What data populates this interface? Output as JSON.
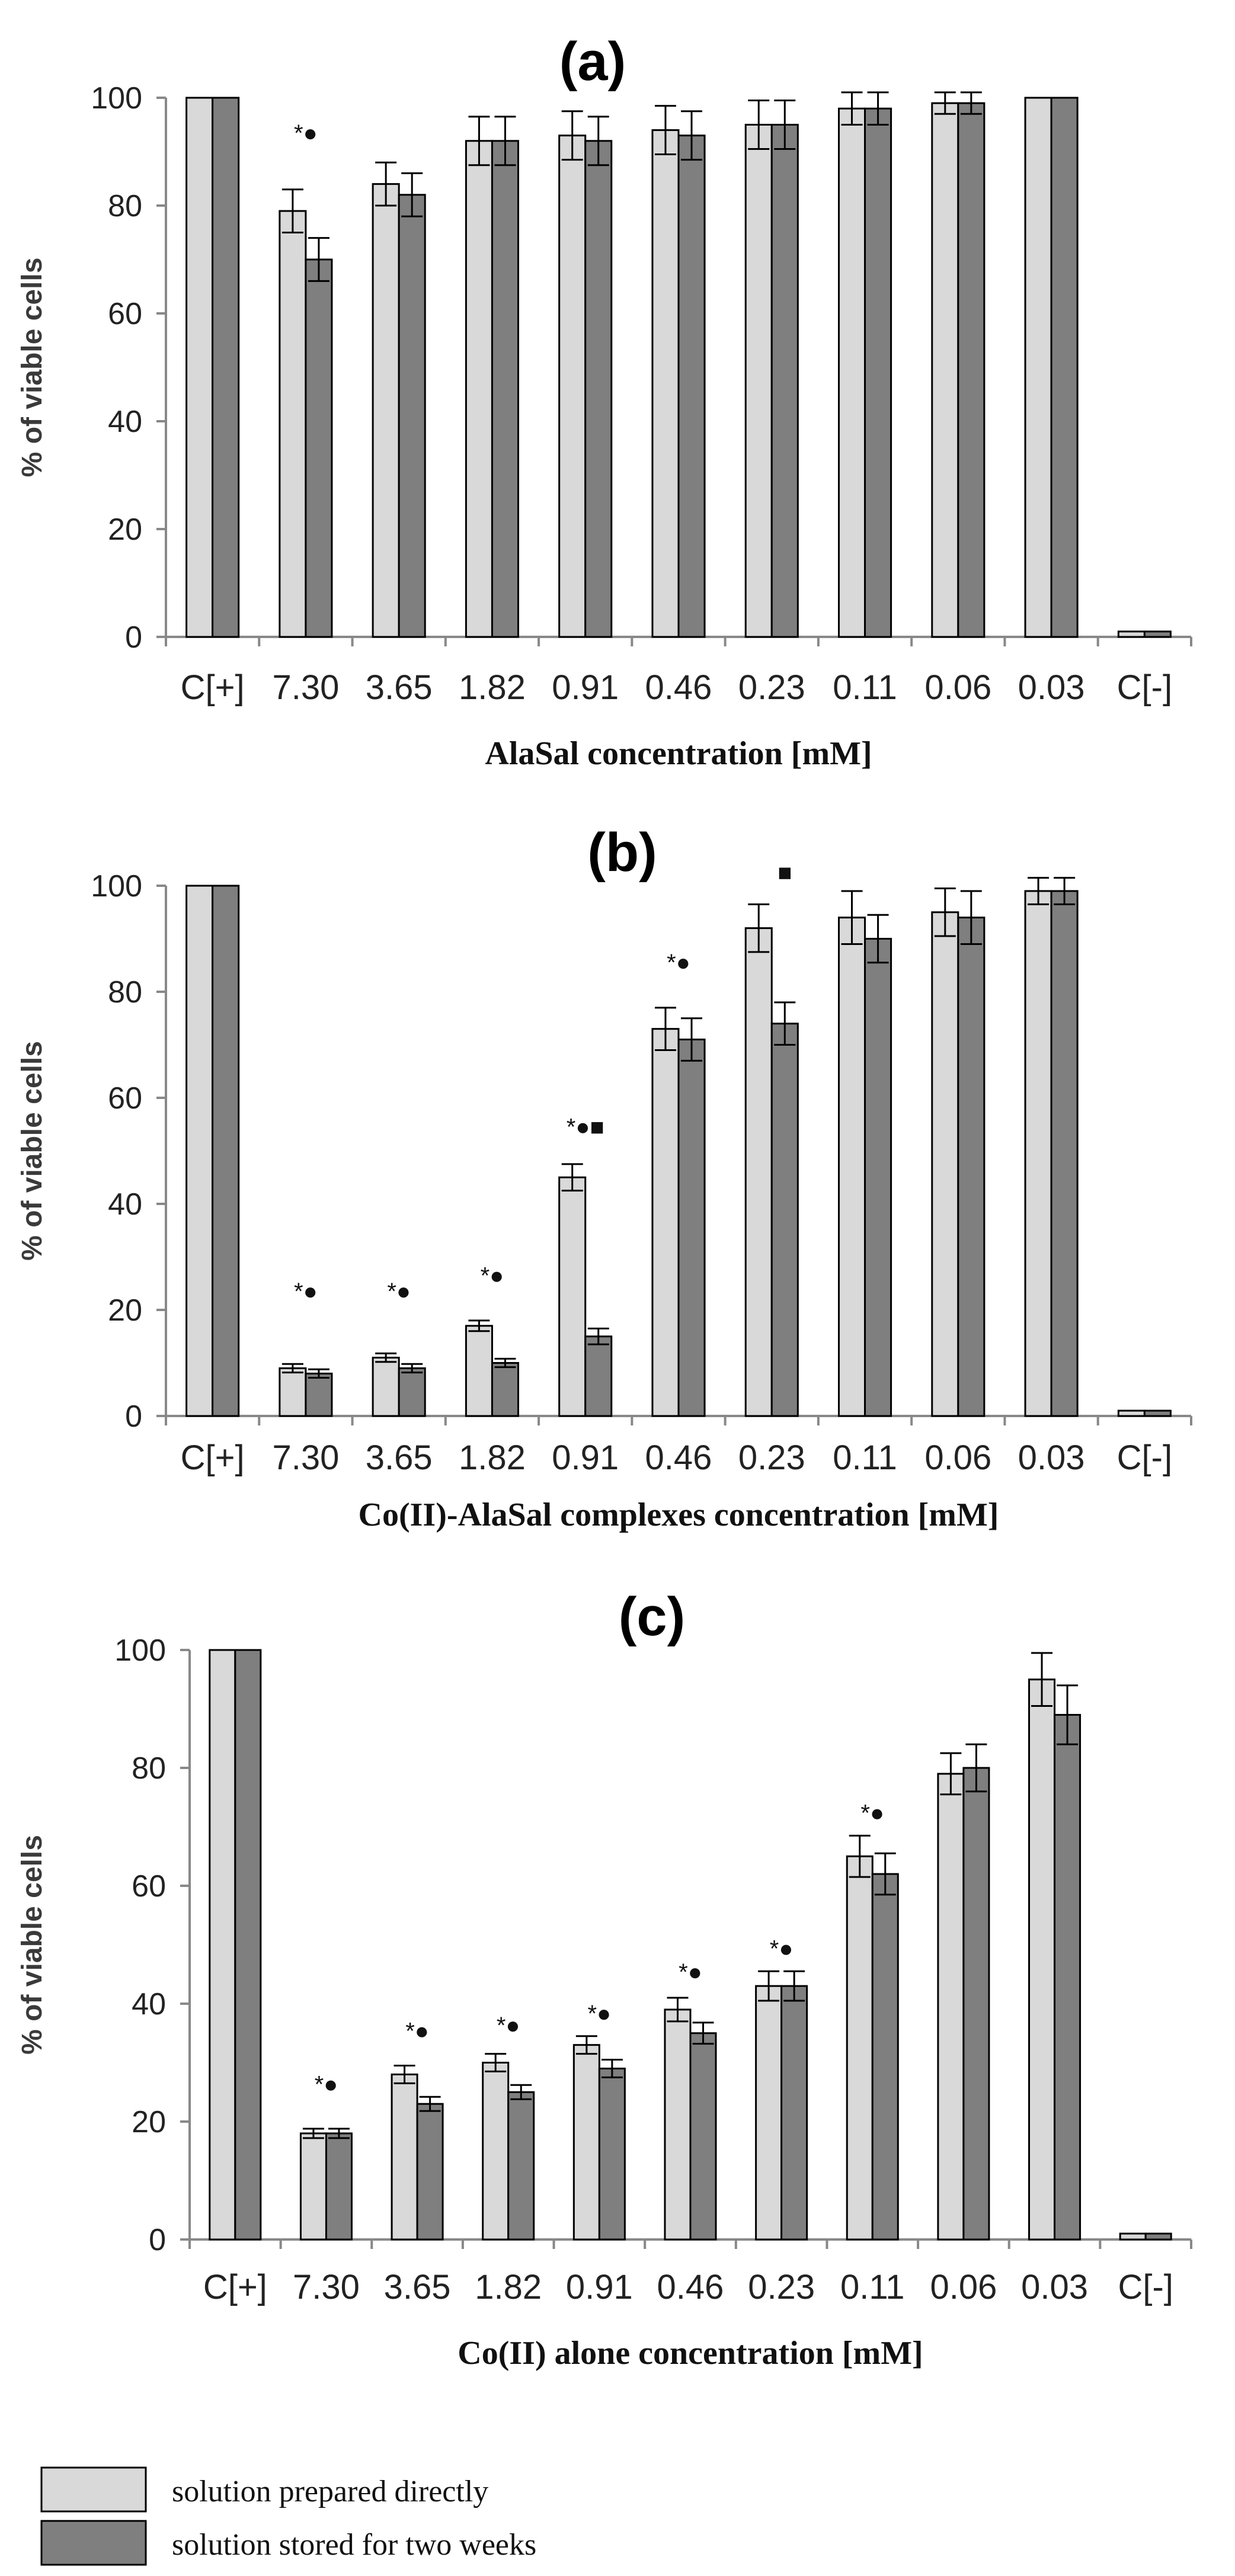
{
  "chart_data": [
    {
      "type": "bar",
      "title": "(a)",
      "xlabel": "AlaSal   concentration  [mM]",
      "ylabel": "% of viable  cells",
      "ylim": [
        0,
        100
      ],
      "yticks": [
        0,
        20,
        40,
        60,
        80,
        100
      ],
      "categories": [
        "C[+]",
        "7.30",
        "3.65",
        "1.82",
        "0.91",
        "0.46",
        "0.23",
        "0.11",
        "0.06",
        "0.03",
        "C[-]"
      ],
      "series": [
        {
          "name": "solution prepared directly",
          "color": "#d9d9d9",
          "values": [
            100,
            79,
            84,
            92,
            93,
            94,
            95,
            98,
            99,
            100,
            1
          ],
          "errors": [
            0,
            4,
            4,
            4.5,
            4.5,
            4.5,
            4.5,
            3,
            2,
            0,
            0
          ]
        },
        {
          "name": "solution stored for two weeks",
          "color": "#7f7f7f",
          "values": [
            100,
            70,
            82,
            92,
            92,
            93,
            95,
            98,
            99,
            100,
            1
          ],
          "errors": [
            0,
            4,
            4,
            4.5,
            4.5,
            4.5,
            4.5,
            3,
            2,
            0,
            0
          ]
        }
      ],
      "annotations": [
        {
          "category": "7.30",
          "text": "*●",
          "y": 92
        }
      ]
    },
    {
      "type": "bar",
      "title": "(b)",
      "xlabel": "Co(II)-AlaSal complexes    concentration  [mM]",
      "ylabel": "% of viable  cells",
      "ylim": [
        0,
        100
      ],
      "yticks": [
        0,
        20,
        40,
        60,
        80,
        100
      ],
      "categories": [
        "C[+]",
        "7.30",
        "3.65",
        "1.82",
        "0.91",
        "0.46",
        "0.23",
        "0.11",
        "0.06",
        "0.03",
        "C[-]"
      ],
      "series": [
        {
          "name": "solution prepared directly",
          "color": "#d9d9d9",
          "values": [
            100,
            9,
            11,
            17,
            45,
            73,
            92,
            94,
            95,
            99,
            1
          ],
          "errors": [
            0,
            0.8,
            0.8,
            1,
            2.5,
            4,
            4.5,
            5,
            4.5,
            2.5,
            0
          ]
        },
        {
          "name": "solution stored for two weeks",
          "color": "#7f7f7f",
          "values": [
            100,
            8,
            9,
            10,
            15,
            71,
            74,
            90,
            94,
            99,
            1
          ],
          "errors": [
            0,
            0.8,
            0.8,
            0.8,
            1.5,
            4,
            4,
            4.5,
            5,
            2.5,
            0
          ]
        }
      ],
      "annotations": [
        {
          "category": "7.30",
          "text": "*●",
          "y": 22
        },
        {
          "category": "3.65",
          "text": "*●",
          "y": 22
        },
        {
          "category": "1.82",
          "text": "*●",
          "y": 25
        },
        {
          "category": "0.91",
          "text": "*●■",
          "y": 53
        },
        {
          "category": "0.46",
          "text": "*●",
          "y": 84
        },
        {
          "category": "0.23",
          "text": "■",
          "y": 101,
          "offset": 0.5
        }
      ]
    },
    {
      "type": "bar",
      "title": "(c)",
      "xlabel": "Co(II)  alone    concentration  [mM]",
      "ylabel": "% of viable  cells",
      "ylim": [
        0,
        100
      ],
      "yticks": [
        0,
        20,
        40,
        60,
        80,
        100
      ],
      "categories": [
        "C[+]",
        "7.30",
        "3.65",
        "1.82",
        "0.91",
        "0.46",
        "0.23",
        "0.11",
        "0.06",
        "0.03",
        "C[-]"
      ],
      "series": [
        {
          "name": "solution prepared directly",
          "color": "#d9d9d9",
          "values": [
            100,
            18,
            28,
            30,
            33,
            39,
            43,
            65,
            79,
            95,
            1
          ],
          "errors": [
            0,
            0.8,
            1.5,
            1.5,
            1.5,
            2,
            2.5,
            3.5,
            3.5,
            4.5,
            0
          ]
        },
        {
          "name": "solution stored for two weeks",
          "color": "#7f7f7f",
          "values": [
            100,
            18,
            23,
            25,
            29,
            35,
            43,
            62,
            80,
            89,
            1
          ],
          "errors": [
            0,
            0.8,
            1.2,
            1.2,
            1.5,
            1.8,
            2.5,
            3.5,
            4,
            5,
            0
          ]
        }
      ],
      "annotations": [
        {
          "category": "7.30",
          "text": "*●",
          "y": 25
        },
        {
          "category": "3.65",
          "text": "*●",
          "y": 34
        },
        {
          "category": "1.82",
          "text": "*●",
          "y": 35
        },
        {
          "category": "0.91",
          "text": "*●",
          "y": 37
        },
        {
          "category": "0.46",
          "text": "*●",
          "y": 44
        },
        {
          "category": "0.23",
          "text": "*●",
          "y": 48
        },
        {
          "category": "0.11",
          "text": "*●",
          "y": 71
        }
      ]
    }
  ],
  "legend": {
    "items": [
      {
        "label": "solution prepared directly",
        "color": "#d9d9d9"
      },
      {
        "label": "solution stored for two weeks",
        "color": "#7f7f7f"
      }
    ]
  }
}
